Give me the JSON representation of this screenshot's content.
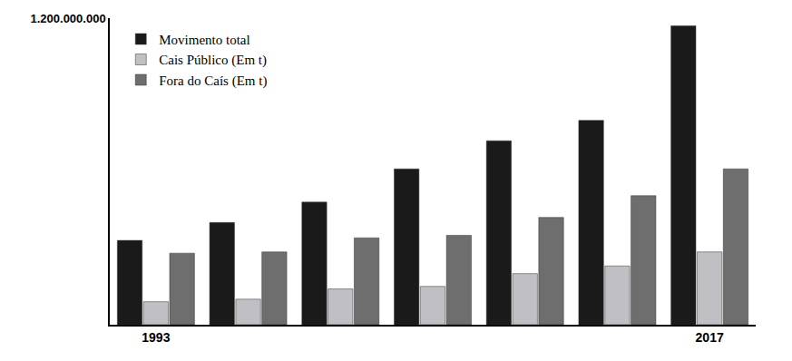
{
  "chart_data": {
    "type": "bar",
    "categories": [
      "1993",
      null,
      null,
      null,
      null,
      null,
      "2017"
    ],
    "series": [
      {
        "name": "Movimento total",
        "color": "#1a1a1a",
        "values": [
          330000000,
          400000000,
          480000000,
          610000000,
          720000000,
          800000000,
          1170000000
        ]
      },
      {
        "name": "Cais Público (Em t)",
        "color": "#c0c0c4",
        "values": [
          90000000,
          100000000,
          140000000,
          150000000,
          200000000,
          230000000,
          285000000
        ]
      },
      {
        "name": "Fora do Caís (Em t)",
        "color": "#6e6e6e",
        "values": [
          280000000,
          285000000,
          340000000,
          350000000,
          420000000,
          505000000,
          610000000
        ]
      }
    ],
    "ylim": [
      0,
      1200000000
    ],
    "yticks": [
      {
        "value": 1200000000,
        "label": "1.200.000.000"
      }
    ],
    "grid": false,
    "legend": "upper left"
  }
}
